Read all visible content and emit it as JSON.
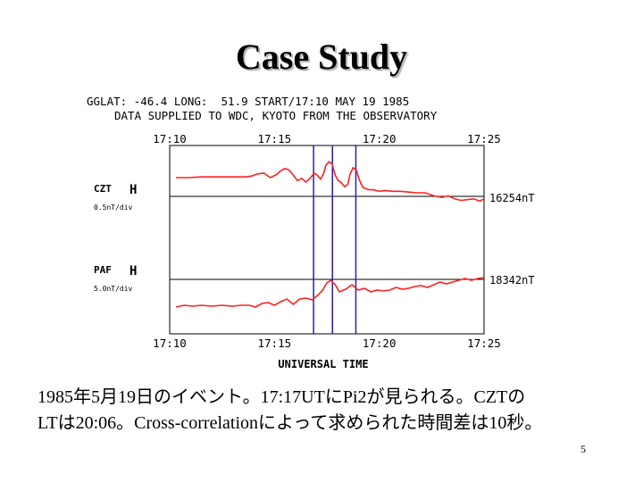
{
  "slide": {
    "title": "Case Study",
    "header_line1": "GGLAT: -46.4 LONG:  51.9 START/17:10 MAY 19 1985",
    "header_line2": "DATA SUPPLIED TO WDC, KYOTO FROM THE OBSERVATORY",
    "caption_line1": "1985年5月19日のイベント。17:17UTにPi2が見られる。CZTの",
    "caption_line2": "LTは20:06。Cross-correlationによって求められた時間差は10秒。",
    "page_number": "5"
  },
  "colors": {
    "trace": "#ff2020",
    "marker": "#2020c0",
    "axis": "#000000"
  },
  "chart_data": {
    "type": "line",
    "x_unit": "UT time",
    "xlim": [
      "17:10",
      "17:25"
    ],
    "x_tick_labels": [
      "17:10",
      "17:15",
      "17:20",
      "17:25"
    ],
    "xlabel": "UNIVERSAL TIME",
    "panels": [
      {
        "station": "CZT",
        "component": "H",
        "scale": "0.5nT/div",
        "baseline": "16254nT",
        "series": [
          {
            "x": [
              10.3,
              10.9,
              11.5,
              12.3,
              13.0,
              13.6,
              13.9,
              14.2,
              14.5,
              14.8,
              15.1,
              15.3,
              15.5,
              15.7,
              15.9,
              16.1,
              16.3,
              16.5,
              16.7,
              16.9,
              17.05,
              17.2,
              17.35,
              17.45,
              17.6,
              17.75,
              17.9,
              18.05,
              18.2,
              18.35,
              18.5,
              18.6,
              18.75,
              18.9,
              19.05,
              19.2,
              19.3,
              19.5,
              19.7,
              20.0,
              20.3,
              20.6,
              21.0,
              21.4,
              21.8,
              22.2,
              22.6,
              23.0,
              23.3,
              23.6,
              23.9,
              24.2,
              24.5,
              24.8,
              25.0
            ],
            "y": [
              0.0,
              0.0,
              0.1,
              0.1,
              0.1,
              0.1,
              0.2,
              0.5,
              0.6,
              0.0,
              0.4,
              0.9,
              1.2,
              1.0,
              0.3,
              -0.4,
              -0.1,
              -0.6,
              -0.1,
              0.6,
              0.3,
              -0.2,
              0.6,
              1.6,
              2.1,
              1.8,
              0.3,
              -0.4,
              -0.7,
              -1.2,
              -0.9,
              0.4,
              1.3,
              1.0,
              -0.3,
              -1.2,
              -1.4,
              -1.6,
              -1.6,
              -1.8,
              -1.7,
              -1.8,
              -1.8,
              -1.9,
              -2.0,
              -2.0,
              -2.4,
              -2.6,
              -2.4,
              -2.8,
              -3.0,
              -2.9,
              -2.8,
              -3.1,
              -2.8
            ]
          }
        ]
      },
      {
        "station": "PAF",
        "component": "H",
        "scale": "5.0nT/div",
        "baseline": "18342nT",
        "series": [
          {
            "x": [
              10.3,
              10.7,
              11.1,
              11.5,
              12.0,
              12.5,
              13.0,
              13.4,
              13.8,
              14.1,
              14.4,
              14.7,
              15.0,
              15.3,
              15.6,
              15.9,
              16.2,
              16.5,
              16.8,
              17.1,
              17.3,
              17.5,
              17.7,
              17.9,
              18.1,
              18.4,
              18.7,
              19.0,
              19.3,
              19.6,
              19.9,
              20.2,
              20.5,
              20.8,
              21.1,
              21.4,
              21.7,
              22.0,
              22.3,
              22.6,
              22.9,
              23.2,
              23.5,
              23.8,
              24.1,
              24.4,
              24.7,
              25.0
            ],
            "y": [
              0.0,
              0.2,
              0.1,
              0.2,
              0.1,
              0.2,
              0.1,
              0.2,
              0.2,
              0.0,
              0.4,
              0.5,
              0.2,
              0.6,
              0.9,
              0.3,
              0.9,
              1.0,
              0.8,
              1.4,
              1.9,
              2.7,
              3.0,
              2.5,
              1.7,
              2.0,
              2.5,
              1.9,
              2.1,
              1.7,
              1.9,
              1.8,
              1.9,
              2.2,
              2.0,
              2.1,
              2.3,
              2.4,
              2.2,
              2.5,
              2.8,
              2.6,
              2.8,
              3.0,
              3.2,
              3.0,
              3.2,
              3.3
            ]
          }
        ]
      }
    ],
    "vertical_markers": [
      "16:52",
      "17:46",
      "18:53"
    ],
    "grid": false
  }
}
